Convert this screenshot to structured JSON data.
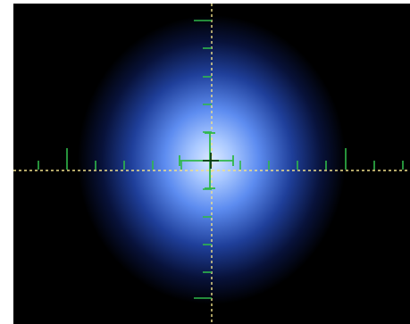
{
  "view": {
    "name": "beam-profile-view",
    "background_color": "#000000",
    "beam_color": "#7fb3ff",
    "crosshair_color": "#f0e08a",
    "scale_color": "#2fb84a"
  }
}
